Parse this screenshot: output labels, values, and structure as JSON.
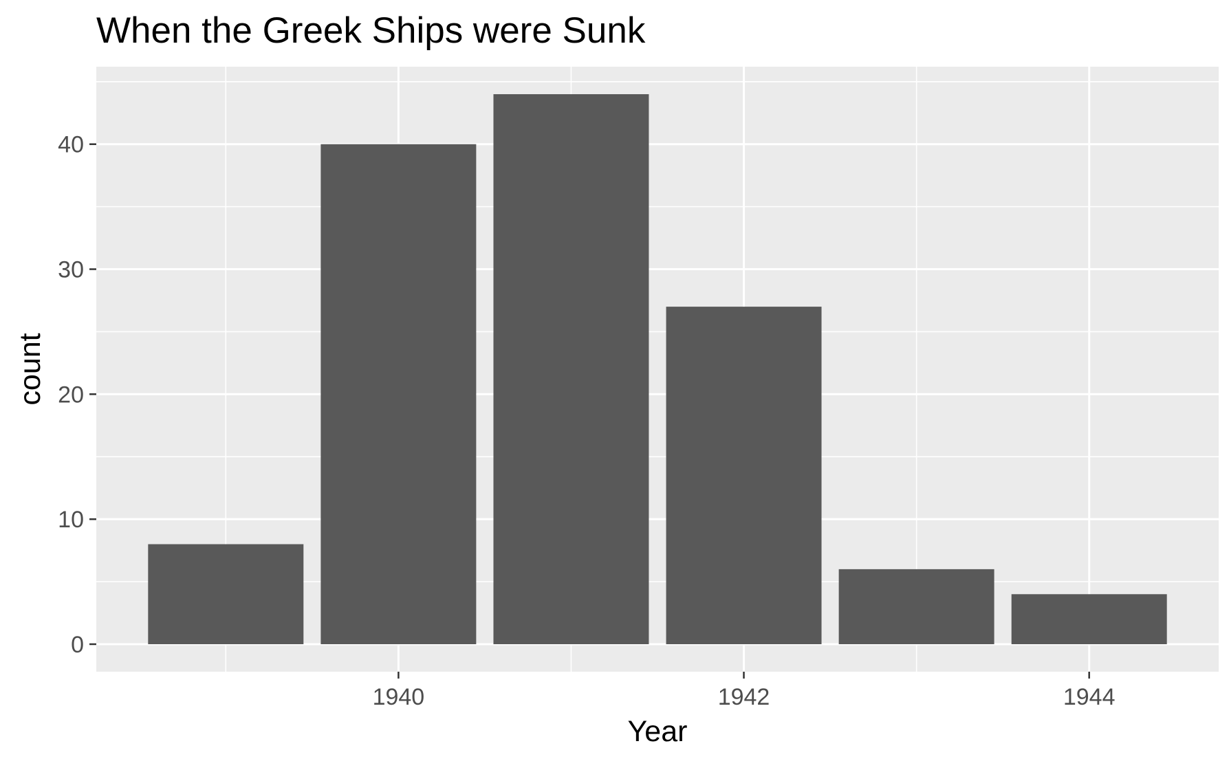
{
  "chart_data": {
    "type": "bar",
    "title": "When the Greek Ships were Sunk",
    "xlabel": "Year",
    "ylabel": "count",
    "categories": [
      1939,
      1940,
      1941,
      1942,
      1943,
      1944
    ],
    "values": [
      8,
      40,
      44,
      27,
      6,
      4
    ],
    "xlim": [
      1938.25,
      1944.75
    ],
    "ylim": [
      -2.2,
      46.2
    ],
    "x_ticks": [
      "1940",
      "1942",
      "1944"
    ],
    "y_ticks": [
      "0",
      "10",
      "20",
      "30",
      "40"
    ],
    "grid": true,
    "legend": "none"
  },
  "colors": {
    "panel_background": "#ebebeb",
    "grid": "#ffffff",
    "bar_fill": "#595959",
    "tick_mark": "#333333"
  }
}
